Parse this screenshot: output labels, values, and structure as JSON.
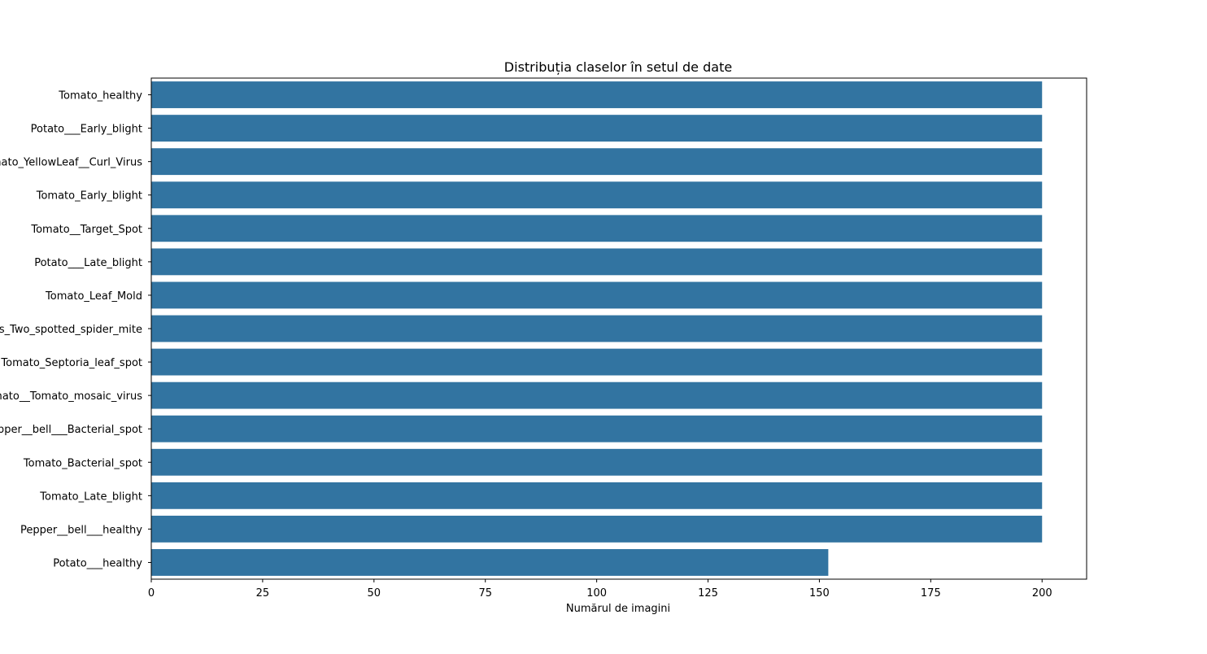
{
  "chart_data": {
    "type": "bar",
    "orientation": "horizontal",
    "title": "Distribuția claselor în setul de date",
    "xlabel": "Numărul de imagini",
    "ylabel": "",
    "xlim": [
      0,
      210
    ],
    "xticks": [
      0,
      25,
      50,
      75,
      100,
      125,
      150,
      175,
      200
    ],
    "grid": false,
    "bar_color": "#3274a1",
    "categories": [
      "Tomato_healthy",
      "Potato___Early_blight",
      "Tomato__Tomato_YellowLeaf__Curl_Virus",
      "Tomato_Early_blight",
      "Tomato__Target_Spot",
      "Potato___Late_blight",
      "Tomato_Leaf_Mold",
      "Tomato_Spider_mites_Two_spotted_spider_mite",
      "Tomato_Septoria_leaf_spot",
      "Tomato__Tomato_mosaic_virus",
      "Pepper__bell___Bacterial_spot",
      "Tomato_Bacterial_spot",
      "Tomato_Late_blight",
      "Pepper__bell___healthy",
      "Potato___healthy"
    ],
    "values": [
      200,
      200,
      200,
      200,
      200,
      200,
      200,
      200,
      200,
      200,
      200,
      200,
      200,
      200,
      152
    ]
  }
}
